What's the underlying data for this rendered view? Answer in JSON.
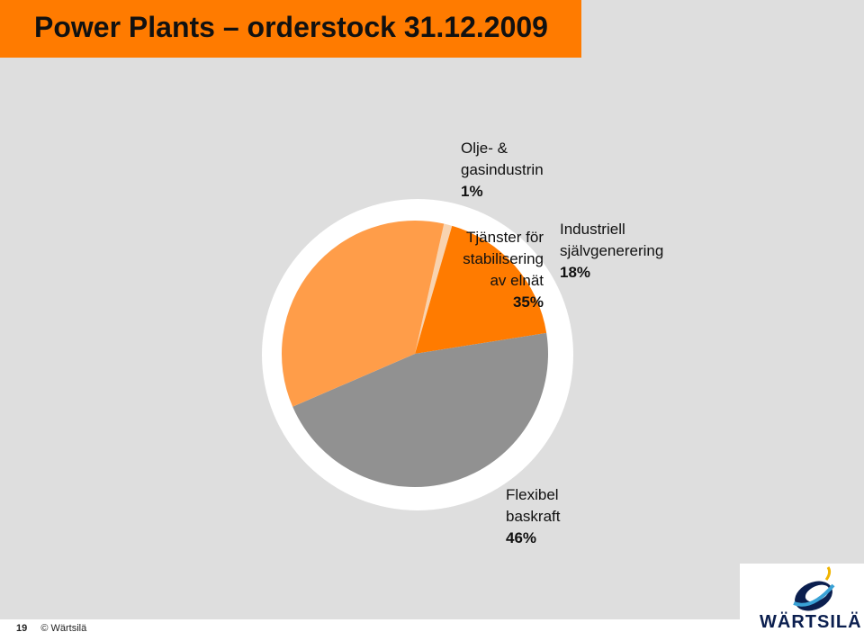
{
  "slide": {
    "title": "Power Plants – orderstock 31.12.2009",
    "page_number": "19",
    "copyright": "© Wärtsilä",
    "logo_text": "WÄRTSILÄ"
  },
  "colors": {
    "title_bar": "#ff7b00",
    "background": "#dedede"
  },
  "chart_data": {
    "type": "pie",
    "slices": [
      {
        "label": "Olje- & gasindustrin",
        "label_lines": [
          "Olje- &",
          "gasindustrin"
        ],
        "pct_text": "1%",
        "value": 1,
        "color": "#f8d3b0"
      },
      {
        "label": "Industriell självgenerering",
        "label_lines": [
          "Industriell",
          "självgenerering"
        ],
        "pct_text": "18%",
        "value": 18,
        "color": "#ff7b00"
      },
      {
        "label": "Flexibel baskraft",
        "label_lines": [
          "Flexibel",
          "baskraft"
        ],
        "pct_text": "46%",
        "value": 46,
        "color": "#919191"
      },
      {
        "label": "Tjänster för stabilisering av elnät",
        "label_lines": [
          "Tjänster för",
          "stabilisering",
          "av elnät"
        ],
        "pct_text": "35%",
        "value": 35,
        "color": "#ff9d49"
      }
    ]
  }
}
